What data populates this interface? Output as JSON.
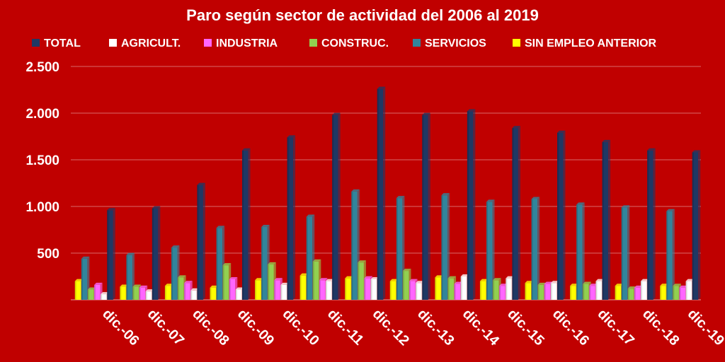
{
  "chart_data": {
    "type": "bar",
    "title": "Paro según sector de actividad del 2006 al 2019",
    "xlabel": "",
    "ylabel": "",
    "ylim": [
      0,
      2500
    ],
    "yticks": [
      500,
      1000,
      1500,
      2000,
      2500
    ],
    "ytick_labels": [
      "500",
      "1.000",
      "1.500",
      "2.000",
      "2.500"
    ],
    "grid": true,
    "legend_position": "top",
    "categories": [
      "dic.-06",
      "dic.-07",
      "dic.-08",
      "dic.-09",
      "dic.-10",
      "dic.-11",
      "dic.-12",
      "dic.-13",
      "dic.-14",
      "dic.-15",
      "dic.-16",
      "dic.-17",
      "dic.-18",
      "dic.-19"
    ],
    "series": [
      {
        "name": "SIN EMPLEO ANTERIOR",
        "color": "#ffff00",
        "values": [
          200,
          140,
          150,
          130,
          210,
          260,
          230,
          200,
          240,
          200,
          180,
          150,
          150,
          150
        ]
      },
      {
        "name": "SERVICIOS",
        "color": "#31859c",
        "values": [
          440,
          480,
          560,
          770,
          780,
          890,
          1160,
          1090,
          1120,
          1050,
          1080,
          1020,
          990,
          950
        ]
      },
      {
        "name": "CONSTRUC.",
        "color": "#92d050",
        "values": [
          110,
          140,
          240,
          370,
          380,
          410,
          400,
          310,
          230,
          210,
          160,
          170,
          120,
          150
        ]
      },
      {
        "name": "INDUSTRIA",
        "color": "#ff66ff",
        "values": [
          160,
          130,
          180,
          220,
          210,
          210,
          230,
          200,
          170,
          150,
          170,
          150,
          130,
          130
        ]
      },
      {
        "name": "AGRICULT.",
        "color": "#ffffff",
        "values": [
          60,
          90,
          100,
          110,
          160,
          200,
          220,
          180,
          250,
          230,
          180,
          200,
          200,
          200
        ]
      },
      {
        "name": "TOTAL",
        "color": "#1f3864",
        "values": [
          960,
          980,
          1230,
          1600,
          1740,
          1980,
          2260,
          1980,
          2020,
          1840,
          1790,
          1690,
          1600,
          1580
        ]
      }
    ],
    "legend_order": [
      "TOTAL",
      "AGRICULT.",
      "INDUSTRIA",
      "CONSTRUC.",
      "SERVICIOS",
      "SIN EMPLEO ANTERIOR"
    ]
  }
}
